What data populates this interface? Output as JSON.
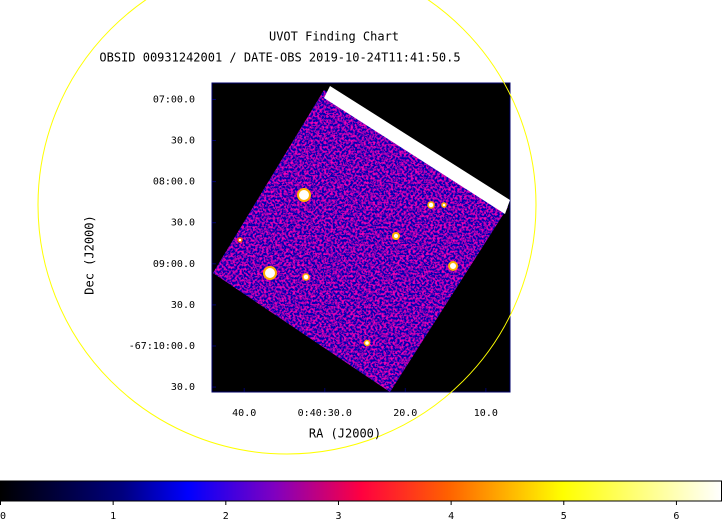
{
  "chart_data": {
    "type": "image",
    "title": "UVOT Finding Chart",
    "subtitle": "OBSID 00931242001 / DATE-OBS 2019-10-24T11:41:50.5",
    "x_label": "RA (J2000)",
    "y_label": "Dec (J2000)",
    "xlim": [
      44,
      7
    ],
    "xticks": [
      {
        "value": 40,
        "label": "40.0"
      },
      {
        "value": 30,
        "label": "0:40:30.0"
      },
      {
        "value": 20,
        "label": "20.0"
      },
      {
        "value": 10,
        "label": "10.0"
      }
    ],
    "ylim": [
      10.56,
      6.8
    ],
    "yticks": [
      {
        "value": 7,
        "label": "07:00.0"
      },
      {
        "value": 7.5,
        "label": "30.0"
      },
      {
        "value": 8,
        "label": "08:00.0"
      },
      {
        "value": 8.5,
        "label": "30.0"
      },
      {
        "value": 9,
        "label": "09:00.0"
      },
      {
        "value": 9.5,
        "label": "30.0"
      },
      {
        "value": 10,
        "label": "-67:10:00.0"
      },
      {
        "value": 10.5,
        "label": "30.0"
      }
    ],
    "colorbar": {
      "lim": [
        0,
        6.4
      ],
      "ticks": [
        0,
        1,
        2,
        3,
        4,
        5,
        6
      ]
    }
  }
}
